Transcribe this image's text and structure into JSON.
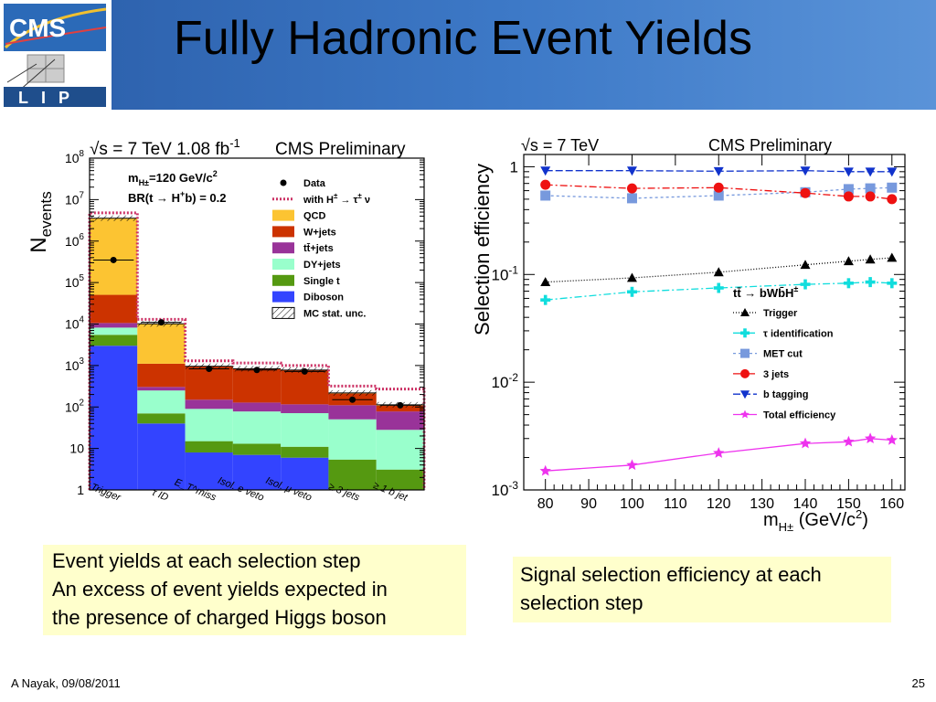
{
  "slide": {
    "title": "Fully Hadronic Event Yields",
    "logo_text_top": "CMS",
    "logo_text_bottom": "LIP",
    "caption_left": [
      "Event yields at each selection step",
      "An excess of event yields expected in",
      "the presence of charged Higgs boson"
    ],
    "caption_right": [
      "Signal selection efficiency at each",
      "selection step"
    ],
    "footer_left": "A Nayak,  09/08/2011",
    "footer_right": "25"
  },
  "colors": {
    "header": "#3d79c7",
    "caption_bg": "#ffffcc",
    "qcd": "#fcc432",
    "wjets": "#cc3300",
    "ttjets": "#993399",
    "dyjets": "#99ffcc",
    "single_t": "#559911",
    "diboson": "#3344ff",
    "signal": "#cc3366"
  },
  "chart_data": [
    {
      "type": "bar",
      "stacked": true,
      "log_scale_y": true,
      "header_left": "√s = 7 TeV   1.08 fb",
      "header_left_sup": "-1",
      "header_right": "CMS Preliminary",
      "ylabel": "N",
      "ylabel_sub": "events",
      "annotation_line1": "m",
      "annotation_line1_sub": "H±",
      "annotation_line1_rest": "=120 GeV/c",
      "annotation_line1_sup": "2",
      "annotation_line2": "BR(t → H",
      "annotation_line2_sup": "+",
      "annotation_line2_rest": "b) = 0.2",
      "ylim": [
        1,
        100000000
      ],
      "y_ticks": [
        {
          "value": 1,
          "label": "1"
        },
        {
          "value": 10,
          "label": "10"
        },
        {
          "value": 100,
          "label": "10",
          "sup": "2"
        },
        {
          "value": 1000,
          "label": "10",
          "sup": "3"
        },
        {
          "value": 10000,
          "label": "10",
          "sup": "4"
        },
        {
          "value": 100000,
          "label": "10",
          "sup": "5"
        },
        {
          "value": 1000000,
          "label": "10",
          "sup": "6"
        },
        {
          "value": 10000000,
          "label": "10",
          "sup": "7"
        },
        {
          "value": 100000000,
          "label": "10",
          "sup": "8"
        }
      ],
      "categories": [
        "Trigger",
        "τ ID",
        "E_T^miss",
        "Isol. e veto",
        "Isol. μ veto",
        "≥ 3 jets",
        "≥ 1 b jet"
      ],
      "series": [
        {
          "name": "Diboson",
          "color": "#3344ff",
          "values": [
            3000,
            40,
            8,
            7,
            6,
            0.9,
            0.6
          ]
        },
        {
          "name": "Single t",
          "color": "#559911",
          "values": [
            2500,
            30,
            7,
            6,
            5,
            4.5,
            2.5
          ]
        },
        {
          "name": "DY+jets",
          "color": "#99ffcc",
          "values": [
            2700,
            180,
            75,
            65,
            60,
            45,
            25
          ]
        },
        {
          "name": "tt̄+jets",
          "color": "#993399",
          "values": [
            2400,
            55,
            60,
            50,
            45,
            60,
            50
          ]
        },
        {
          "name": "W+jets",
          "color": "#cc3300",
          "values": [
            40000,
            800,
            800,
            700,
            650,
            100,
            30
          ]
        },
        {
          "name": "QCD",
          "color": "#fcc432",
          "values": [
            3500000,
            9000,
            8,
            10,
            12,
            8,
            5
          ]
        }
      ],
      "data_points": [
        350000,
        11000,
        830,
        780,
        720,
        150,
        110
      ],
      "signal_tops": [
        4800000,
        13000,
        1300,
        1150,
        1000,
        320,
        270
      ],
      "legend": [
        {
          "label": "Data",
          "kind": "marker"
        },
        {
          "label": "with H",
          "sup": "±",
          "rest": " → τ",
          "sup2": "±",
          "rest2": " ν",
          "kind": "dashed"
        },
        {
          "label": "QCD",
          "kind": "box",
          "color": "#fcc432"
        },
        {
          "label": "W+jets",
          "kind": "box",
          "color": "#cc3300"
        },
        {
          "label": "tt̄+jets",
          "kind": "box",
          "color": "#993399"
        },
        {
          "label": "DY+jets",
          "kind": "box",
          "color": "#99ffcc"
        },
        {
          "label": "Single t",
          "kind": "box",
          "color": "#559911"
        },
        {
          "label": "Diboson",
          "kind": "box",
          "color": "#3344ff"
        },
        {
          "label": "MC stat. unc.",
          "kind": "hatch"
        }
      ]
    },
    {
      "type": "line",
      "log_scale_y": true,
      "header_left": "√s = 7 TeV",
      "header_right": "CMS Preliminary",
      "ylabel": "Selection efficiency",
      "xlabel": "m",
      "xlabel_sub": "H±",
      "xlabel_rest": " (GeV/c",
      "xlabel_sup": "2",
      "xlabel_end": ")",
      "xlim": [
        75,
        163
      ],
      "ylim": [
        0.001,
        1.3
      ],
      "x_ticks": [
        80,
        90,
        100,
        110,
        120,
        130,
        140,
        150,
        160
      ],
      "y_ticks": [
        {
          "value": 1,
          "label": "1"
        },
        {
          "value": 0.1,
          "label": "10",
          "sup": "-1"
        },
        {
          "value": 0.01,
          "label": "10",
          "sup": "-2"
        },
        {
          "value": 0.001,
          "label": "10",
          "sup": "-3"
        }
      ],
      "legend_title": "tt̄ → bWb̄H",
      "legend_title_sup": "±",
      "x": [
        80,
        100,
        120,
        140,
        150,
        155,
        160
      ],
      "series": [
        {
          "name": "Trigger",
          "color": "#000000",
          "marker": "triangle-up",
          "dash": "1,2",
          "values": [
            0.085,
            0.093,
            0.105,
            0.123,
            0.133,
            0.138,
            0.143
          ]
        },
        {
          "name": "τ identification",
          "color": "#11dddd",
          "marker": "cross",
          "dash": "8,3,2,3",
          "values": [
            0.058,
            0.069,
            0.075,
            0.081,
            0.083,
            0.085,
            0.083
          ]
        },
        {
          "name": "MET cut",
          "color": "#7799dd",
          "marker": "square",
          "dash": "3,3",
          "values": [
            0.54,
            0.51,
            0.54,
            0.58,
            0.62,
            0.63,
            0.64
          ]
        },
        {
          "name": "3 jets",
          "color": "#ee1111",
          "marker": "circle",
          "dash": "8,3,2,3",
          "values": [
            0.68,
            0.63,
            0.64,
            0.57,
            0.53,
            0.53,
            0.5
          ]
        },
        {
          "name": "b tagging",
          "color": "#1133cc",
          "marker": "triangle-down",
          "dash": "8,3",
          "values": [
            0.92,
            0.92,
            0.91,
            0.92,
            0.9,
            0.9,
            0.9
          ]
        },
        {
          "name": "Total efficiency",
          "color": "#ee33ee",
          "marker": "star",
          "dash": "",
          "values": [
            0.0015,
            0.0017,
            0.0022,
            0.0027,
            0.0028,
            0.003,
            0.0029
          ]
        }
      ]
    }
  ]
}
